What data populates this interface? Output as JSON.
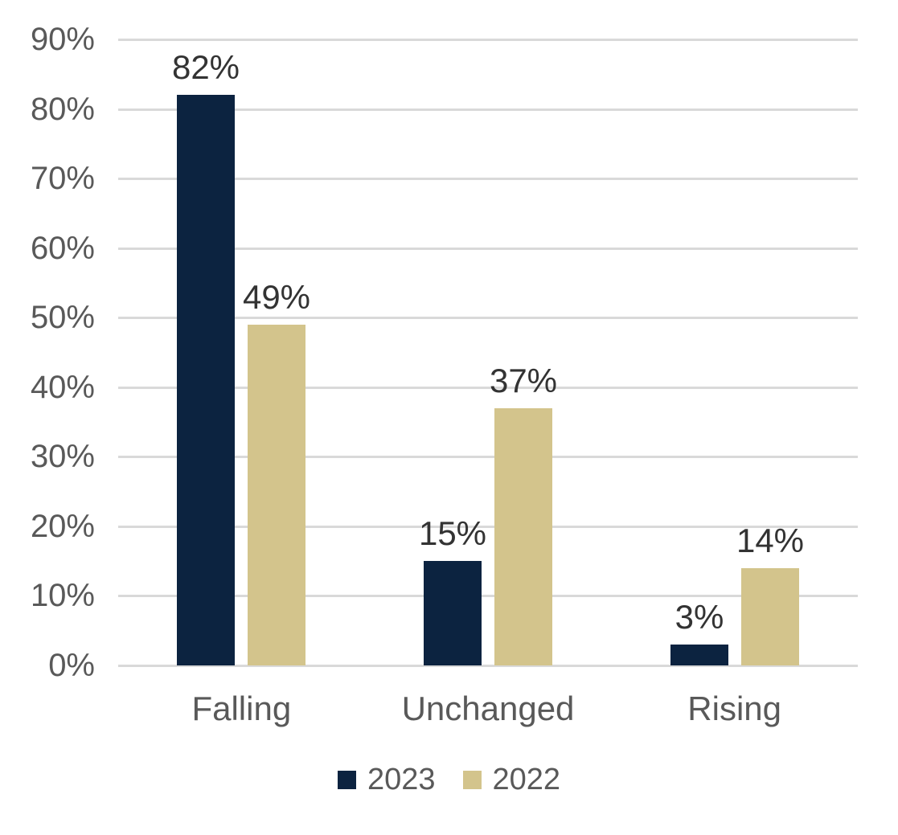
{
  "chart_data": {
    "type": "bar",
    "title": "",
    "xlabel": "",
    "ylabel": "",
    "categories": [
      "Falling",
      "Unchanged",
      "Rising"
    ],
    "series": [
      {
        "name": "2023",
        "color": "#0c2340",
        "values": [
          82,
          15,
          3
        ],
        "labels": [
          "82%",
          "15%",
          "3%"
        ]
      },
      {
        "name": "2022",
        "color": "#d3c48c",
        "values": [
          49,
          37,
          14
        ],
        "labels": [
          "49%",
          "37%",
          "14%"
        ]
      }
    ],
    "ylim": [
      0,
      90
    ],
    "y_ticks": [
      0,
      10,
      20,
      30,
      40,
      50,
      60,
      70,
      80,
      90
    ],
    "y_tick_labels": [
      "0%",
      "10%",
      "20%",
      "30%",
      "40%",
      "50%",
      "60%",
      "70%",
      "80%",
      "90%"
    ],
    "grid": true,
    "legend_position": "bottom",
    "colors": {
      "background": "#ffffff",
      "gridline": "#d9d9d9",
      "axis_text": "#595959",
      "data_label_text": "#333333",
      "legend_text": "#595959"
    }
  }
}
